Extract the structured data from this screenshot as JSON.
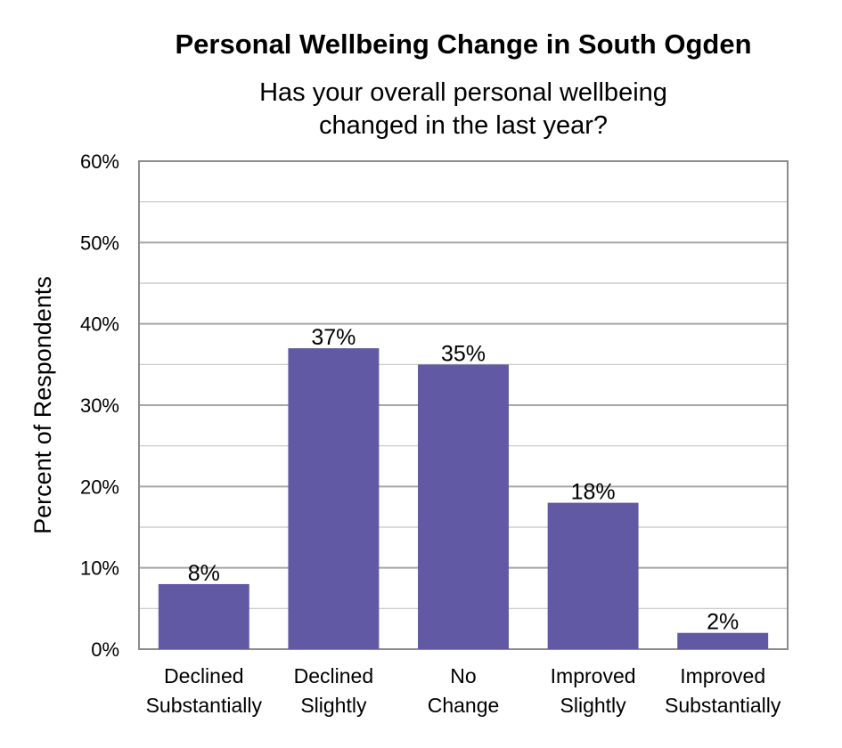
{
  "chart_data": {
    "type": "bar",
    "title": "Personal Wellbeing Change in South Ogden",
    "subtitle_lines": [
      "Has your overall personal wellbeing",
      "changed in the last year?"
    ],
    "ylabel": "Percent of Respondents",
    "xlabel": "",
    "categories": [
      [
        "Declined",
        "Substantially"
      ],
      [
        "Declined",
        "Slightly"
      ],
      [
        "No",
        "Change"
      ],
      [
        "Improved",
        "Slightly"
      ],
      [
        "Improved",
        "Substantially"
      ]
    ],
    "values": [
      8,
      37,
      35,
      18,
      2
    ],
    "data_labels": [
      "8%",
      "37%",
      "35%",
      "18%",
      "2%"
    ],
    "ylim": [
      0,
      60
    ],
    "y_ticks": [
      0,
      10,
      20,
      30,
      40,
      50,
      60
    ],
    "y_tick_labels": [
      "0%",
      "10%",
      "20%",
      "30%",
      "40%",
      "50%",
      "60%"
    ],
    "grid": true,
    "minor_grid": true,
    "bar_color": "#6159a3",
    "grid_color": "#a6a6a6",
    "axis_color": "#8c8c8c"
  }
}
